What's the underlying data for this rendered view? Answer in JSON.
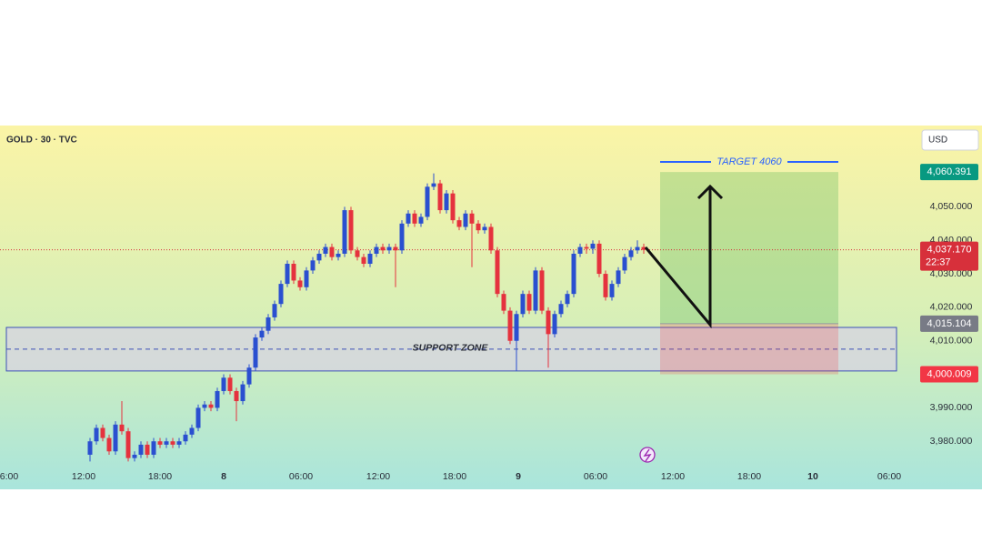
{
  "header": {
    "symbol": "GOLD · 30 · TVC",
    "currency": "USD"
  },
  "chart_data": {
    "type": "candlestick",
    "ylim": [
      3973,
      4074
    ],
    "yticks": [
      {
        "value": 3980,
        "label": "3,980.000"
      },
      {
        "value": 3990,
        "label": "3,990.000"
      },
      {
        "value": 4010,
        "label": "4,010.000"
      },
      {
        "value": 4020,
        "label": "4,020.000"
      },
      {
        "value": 4030,
        "label": "4,030.000"
      },
      {
        "value": 4040,
        "label": "4,040.000"
      },
      {
        "value": 4050,
        "label": "4,050.000"
      }
    ],
    "x_labels": [
      "6:00",
      "12:00",
      "18:00",
      "8",
      "06:00",
      "12:00",
      "18:00",
      "9",
      "06:00",
      "12:00",
      "18:00",
      "10",
      "06:00"
    ],
    "up_color": "#2a4fd0",
    "down_color": "#e5323e",
    "open": [
      3976,
      3980,
      3984,
      3981,
      3977,
      3985,
      3983,
      3975,
      3976,
      3979,
      3976,
      3980,
      3979,
      3980,
      3979,
      3980,
      3982,
      3984,
      3990,
      3991,
      3990,
      3995,
      3999,
      3995,
      3992,
      3997,
      4002,
      4011,
      4013,
      4017,
      4021,
      4027,
      4033,
      4028,
      4026,
      4031,
      4034,
      4036,
      4038,
      4035,
      4036,
      4049,
      4037,
      4035,
      4033,
      4036,
      4038,
      4037,
      4038,
      4037,
      4045,
      4048,
      4045,
      4047,
      4056,
      4057,
      4049,
      4054,
      4046,
      4044,
      4048,
      4045,
      4043,
      4044,
      4037,
      4024,
      4019,
      4010,
      4018,
      4024,
      4019,
      4031,
      4019,
      4012,
      4018,
      4021,
      4024,
      4036,
      4038,
      4037.5,
      4039,
      4030,
      4023,
      4027,
      4031,
      4035,
      4037,
      4038
    ],
    "high": [
      3981,
      3985,
      3985,
      3982,
      3986,
      3992,
      3984,
      3977,
      3980,
      3980,
      3981,
      3981,
      3981,
      3981,
      3981,
      3983,
      3985,
      3991,
      3992,
      3992,
      3996,
      4000,
      4000,
      3996,
      3998,
      4003,
      4012,
      4014,
      4018,
      4022,
      4028,
      4034,
      4034,
      4029,
      4032,
      4035,
      4037,
      4039,
      4039,
      4037,
      4050,
      4050,
      4038,
      4036,
      4037,
      4039,
      4039,
      4039,
      4039,
      4046,
      4049,
      4049,
      4048,
      4057,
      4060,
      4058,
      4055,
      4055,
      4047,
      4049,
      4049,
      4046,
      4045,
      4045,
      4038,
      4025,
      4020,
      4019,
      4025,
      4025,
      4032,
      4032,
      4020,
      4019,
      4022,
      4025,
      4037,
      4039,
      4039,
      4040,
      4040,
      4031,
      4028,
      4032,
      4036,
      4038,
      4040,
      4039
    ],
    "low": [
      3974,
      3979,
      3980,
      3976,
      3976,
      3982,
      3974,
      3974,
      3975,
      3975,
      3975,
      3978,
      3978,
      3978,
      3978,
      3979,
      3981,
      3983,
      3989,
      3989,
      3989,
      3994,
      3994,
      3986,
      3991,
      3996,
      4001,
      4010,
      4012,
      4016,
      4020,
      4026,
      4027,
      4025,
      4025,
      4030,
      4033,
      4035,
      4034,
      4034,
      4035,
      4036,
      4034,
      4032,
      4032,
      4035,
      4036,
      4036,
      4026,
      4036,
      4044,
      4044,
      4044,
      4046,
      4055,
      4048,
      4048,
      4045,
      4043,
      4043,
      4032,
      4042,
      4042,
      4036,
      4023,
      4018,
      4009,
      4001,
      4017,
      4018,
      4018,
      4018,
      4002,
      4011,
      4017,
      4020,
      4023,
      4035,
      4036,
      4036,
      4029,
      4022,
      4022,
      4026,
      4030,
      4034,
      4036,
      4036
    ],
    "close": [
      3980,
      3984,
      3981,
      3977,
      3985,
      3983,
      3975,
      3976,
      3979,
      3976,
      3980,
      3979,
      3980,
      3979,
      3980,
      3982,
      3984,
      3990,
      3991,
      3990,
      3995,
      3999,
      3995,
      3992,
      3997,
      4002,
      4011,
      4013,
      4017,
      4021,
      4027,
      4033,
      4028,
      4026,
      4031,
      4034,
      4036,
      4038,
      4035,
      4036,
      4049,
      4037,
      4035,
      4033,
      4036,
      4038,
      4037,
      4038,
      4037,
      4045,
      4048,
      4045,
      4047,
      4056,
      4057,
      4049,
      4054,
      4046,
      4044,
      4048,
      4045,
      4043,
      4044,
      4037,
      4024,
      4019,
      4010,
      4018,
      4024,
      4019,
      4031,
      4019,
      4012,
      4018,
      4021,
      4024,
      4036,
      4038,
      4037.5,
      4039,
      4030,
      4023,
      4027,
      4031,
      4035,
      4037,
      4038,
      4037.17
    ],
    "last_price": {
      "value": 4037.17,
      "label": "4,037.170",
      "countdown": "22:37",
      "color": "#d7303b"
    },
    "position": {
      "target": {
        "value": 4060.391,
        "label": "4,060.391",
        "color": "#089981"
      },
      "entry": {
        "value": 4015.104,
        "label": "4,015.104",
        "color": "#787b86"
      },
      "stop": {
        "value": 4000.009,
        "label": "4,000.009",
        "color": "#f23645"
      }
    },
    "support_zone": {
      "label": "SUPPORT ZONE",
      "top": 4014,
      "bottom": 4001,
      "mid": 4007.5
    },
    "target_label": "TARGET 4060"
  }
}
